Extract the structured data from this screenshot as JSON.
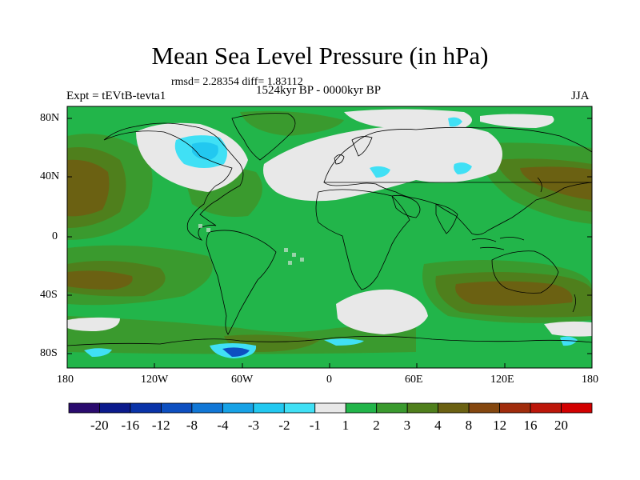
{
  "title": "Mean Sea Level Pressure (in hPa)",
  "stats": "rmsd= 2.28354 diff= 1.83112",
  "experiment": "Expt = tEVtB-tevta1",
  "period": "1524kyr BP - 0000kyr BP",
  "season": "JJA",
  "lat_labels": [
    "80N",
    "40N",
    "0",
    "40S",
    "80S"
  ],
  "lon_labels": [
    "180",
    "120W",
    "60W",
    "0",
    "60E",
    "120E",
    "180"
  ],
  "colorbar": {
    "labels": [
      "-20",
      "-16",
      "-12",
      "-8",
      "-4",
      "-3",
      "-2",
      "-1",
      "1",
      "2",
      "3",
      "4",
      "8",
      "12",
      "16",
      "20"
    ],
    "colors": [
      "#2a0b6e",
      "#0b1a8c",
      "#0a33a8",
      "#0d4fc0",
      "#1177d6",
      "#17a2e6",
      "#22c8f0",
      "#40e0f5",
      "#e8e8e8",
      "#22b54a",
      "#3a9a2e",
      "#4f7f1c",
      "#6b6112",
      "#84470f",
      "#a02c0c",
      "#bc160a",
      "#d20000"
    ]
  },
  "colors": {
    "ocean_base": "#22b54a",
    "neutral": "#e8e8e8",
    "moderate": "#3a9a2e",
    "olive": "#4f7f1c",
    "brown": "#6b6112",
    "negative_light": "#40e0f5",
    "negative_mid": "#22c8f0",
    "negative_dark": "#0d4fc0"
  }
}
